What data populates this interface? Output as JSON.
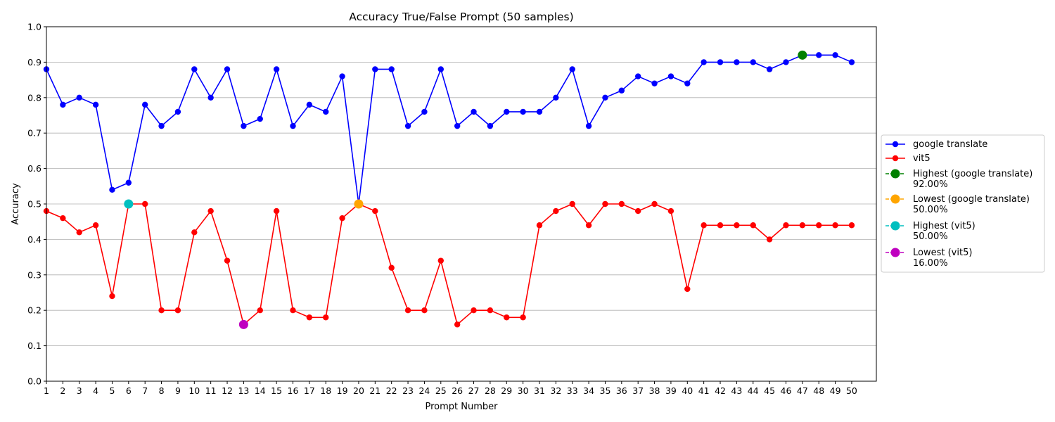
{
  "chart_data": {
    "type": "line",
    "title": "Accuracy True/False Prompt (50 samples)",
    "xlabel": "Prompt Number",
    "ylabel": "Accuracy",
    "xlim": [
      1,
      51.5
    ],
    "ylim": [
      0.0,
      1.0
    ],
    "y_ticks": [
      "0.0",
      "0.1",
      "0.2",
      "0.3",
      "0.4",
      "0.5",
      "0.6",
      "0.7",
      "0.8",
      "0.9",
      "1.0"
    ],
    "x_ticks": [
      "1",
      "2",
      "3",
      "4",
      "5",
      "6",
      "7",
      "8",
      "9",
      "10",
      "11",
      "12",
      "13",
      "14",
      "15",
      "16",
      "17",
      "18",
      "19",
      "20",
      "21",
      "22",
      "23",
      "24",
      "25",
      "26",
      "27",
      "28",
      "29",
      "30",
      "31",
      "32",
      "33",
      "34",
      "35",
      "36",
      "37",
      "38",
      "39",
      "40",
      "41",
      "42",
      "43",
      "44",
      "45",
      "46",
      "47",
      "48",
      "49",
      "50"
    ],
    "grid": "horizontal",
    "legend_position": "center-right, outside plot",
    "x": [
      1,
      2,
      3,
      4,
      5,
      6,
      7,
      8,
      9,
      10,
      11,
      12,
      13,
      14,
      15,
      16,
      17,
      18,
      19,
      20,
      21,
      22,
      23,
      24,
      25,
      26,
      27,
      28,
      29,
      30,
      31,
      32,
      33,
      34,
      35,
      36,
      37,
      38,
      39,
      40,
      41,
      42,
      43,
      44,
      45,
      46,
      47,
      48,
      49,
      50
    ],
    "series": [
      {
        "name": "google translate",
        "color": "#0000ff",
        "values": [
          0.88,
          0.78,
          0.8,
          0.78,
          0.54,
          0.56,
          0.78,
          0.72,
          0.76,
          0.88,
          0.8,
          0.88,
          0.72,
          0.74,
          0.88,
          0.72,
          0.78,
          0.76,
          0.86,
          0.5,
          0.88,
          0.88,
          0.72,
          0.76,
          0.88,
          0.72,
          0.76,
          0.72,
          0.76,
          0.76,
          0.76,
          0.8,
          0.88,
          0.72,
          0.8,
          0.82,
          0.86,
          0.84,
          0.86,
          0.84,
          0.9,
          0.9,
          0.9,
          0.9,
          0.88,
          0.9,
          0.92,
          0.92,
          0.92,
          0.9
        ]
      },
      {
        "name": "vit5",
        "color": "#ff0000",
        "values": [
          0.48,
          0.46,
          0.42,
          0.44,
          0.24,
          0.5,
          0.5,
          0.2,
          0.2,
          0.42,
          0.48,
          0.34,
          0.16,
          0.2,
          0.48,
          0.2,
          0.18,
          0.18,
          0.46,
          0.5,
          0.48,
          0.32,
          0.2,
          0.2,
          0.34,
          0.16,
          0.2,
          0.2,
          0.18,
          0.18,
          0.44,
          0.48,
          0.5,
          0.44,
          0.5,
          0.5,
          0.48,
          0.5,
          0.48,
          0.26,
          0.44,
          0.44,
          0.44,
          0.44,
          0.4,
          0.44,
          0.44,
          0.44,
          0.44,
          0.44
        ]
      }
    ],
    "highlights": [
      {
        "label": "Highest (google translate)",
        "value_label": "92.00%",
        "x": 47,
        "y": 0.92,
        "color": "#008000"
      },
      {
        "label": "Lowest (google translate)",
        "value_label": "50.00%",
        "x": 20,
        "y": 0.5,
        "color": "#ffa500"
      },
      {
        "label": "Highest (vit5)",
        "value_label": "50.00%",
        "x": 6,
        "y": 0.5,
        "color": "#00bfbf"
      },
      {
        "label": "Lowest (vit5)",
        "value_label": "16.00%",
        "x": 13,
        "y": 0.16,
        "color": "#bf00bf"
      }
    ]
  }
}
